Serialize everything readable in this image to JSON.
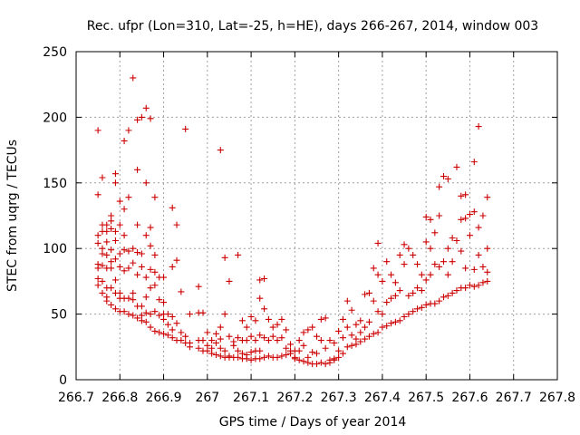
{
  "chart_data": {
    "type": "scatter",
    "title": "Rec. ufpr (Lon=310, Lat=-25, h=HE), days 266-267, 2014, window 003",
    "xlabel": "GPS time / Days of year 2014",
    "ylabel": "STEC from uqrg / TECUs",
    "xlim": [
      266.7,
      267.8
    ],
    "ylim": [
      0,
      250
    ],
    "xticks": [
      "266.7",
      "266.8",
      "266.9",
      "267",
      "267.1",
      "267.2",
      "267.3",
      "267.4",
      "267.5",
      "267.6",
      "267.7",
      "267.8"
    ],
    "yticks": [
      "0",
      "50",
      "100",
      "150",
      "200",
      "250"
    ],
    "grid": true,
    "marker": "+",
    "color": "#cc0000",
    "points": [
      [
        266.75,
        190
      ],
      [
        266.75,
        141
      ],
      [
        266.75,
        110
      ],
      [
        266.75,
        104
      ],
      [
        266.75,
        88
      ],
      [
        266.75,
        85
      ],
      [
        266.75,
        77
      ],
      [
        266.75,
        72
      ],
      [
        266.76,
        154
      ],
      [
        266.76,
        118
      ],
      [
        266.76,
        113
      ],
      [
        266.76,
        100
      ],
      [
        266.76,
        96
      ],
      [
        266.76,
        87
      ],
      [
        266.76,
        75
      ],
      [
        266.76,
        66
      ],
      [
        266.77,
        118
      ],
      [
        266.77,
        113
      ],
      [
        266.77,
        105
      ],
      [
        266.77,
        95
      ],
      [
        266.77,
        85
      ],
      [
        266.77,
        70
      ],
      [
        266.77,
        63
      ],
      [
        266.77,
        60
      ],
      [
        266.78,
        125
      ],
      [
        266.78,
        121
      ],
      [
        266.78,
        115
      ],
      [
        266.78,
        99
      ],
      [
        266.78,
        90
      ],
      [
        266.78,
        85
      ],
      [
        266.78,
        70
      ],
      [
        266.78,
        57
      ],
      [
        266.79,
        157
      ],
      [
        266.79,
        150
      ],
      [
        266.79,
        113
      ],
      [
        266.79,
        106
      ],
      [
        266.79,
        92
      ],
      [
        266.79,
        76
      ],
      [
        266.79,
        66
      ],
      [
        266.79,
        54
      ],
      [
        266.8,
        136
      ],
      [
        266.8,
        118
      ],
      [
        266.8,
        96
      ],
      [
        266.8,
        86
      ],
      [
        266.8,
        66
      ],
      [
        266.8,
        62
      ],
      [
        266.8,
        52
      ],
      [
        266.81,
        182
      ],
      [
        266.81,
        130
      ],
      [
        266.81,
        110
      ],
      [
        266.81,
        99
      ],
      [
        266.81,
        83
      ],
      [
        266.81,
        62
      ],
      [
        266.81,
        52
      ],
      [
        266.82,
        190
      ],
      [
        266.82,
        139
      ],
      [
        266.82,
        98
      ],
      [
        266.82,
        85
      ],
      [
        266.82,
        62
      ],
      [
        266.82,
        50
      ],
      [
        266.83,
        230
      ],
      [
        266.83,
        100
      ],
      [
        266.83,
        89
      ],
      [
        266.83,
        66
      ],
      [
        266.83,
        61
      ],
      [
        266.83,
        49
      ],
      [
        266.84,
        198
      ],
      [
        266.84,
        160
      ],
      [
        266.84,
        118
      ],
      [
        266.84,
        97
      ],
      [
        266.84,
        80
      ],
      [
        266.84,
        56
      ],
      [
        266.84,
        47
      ],
      [
        266.85,
        200
      ],
      [
        266.85,
        96
      ],
      [
        266.85,
        86
      ],
      [
        266.85,
        56
      ],
      [
        266.85,
        49
      ],
      [
        266.85,
        45
      ],
      [
        266.86,
        207
      ],
      [
        266.86,
        150
      ],
      [
        266.86,
        110
      ],
      [
        266.86,
        78
      ],
      [
        266.86,
        63
      ],
      [
        266.86,
        51
      ],
      [
        266.86,
        44
      ],
      [
        266.87,
        199
      ],
      [
        266.87,
        116
      ],
      [
        266.87,
        102
      ],
      [
        266.87,
        84
      ],
      [
        266.87,
        70
      ],
      [
        266.87,
        50
      ],
      [
        266.87,
        40
      ],
      [
        266.88,
        139
      ],
      [
        266.88,
        95
      ],
      [
        266.88,
        82
      ],
      [
        266.88,
        72
      ],
      [
        266.88,
        52
      ],
      [
        266.88,
        37
      ],
      [
        266.89,
        78
      ],
      [
        266.89,
        61
      ],
      [
        266.89,
        49
      ],
      [
        266.89,
        36
      ],
      [
        266.9,
        78
      ],
      [
        266.9,
        59
      ],
      [
        266.9,
        50
      ],
      [
        266.9,
        46
      ],
      [
        266.9,
        35
      ],
      [
        266.91,
        50
      ],
      [
        266.91,
        42
      ],
      [
        266.91,
        34
      ],
      [
        266.92,
        131
      ],
      [
        266.92,
        86
      ],
      [
        266.92,
        48
      ],
      [
        266.92,
        38
      ],
      [
        266.92,
        32
      ],
      [
        266.93,
        118
      ],
      [
        266.93,
        91
      ],
      [
        266.93,
        43
      ],
      [
        266.93,
        30
      ],
      [
        266.94,
        67
      ],
      [
        266.94,
        36
      ],
      [
        266.94,
        30
      ],
      [
        266.95,
        191
      ],
      [
        266.95,
        33
      ],
      [
        266.95,
        28
      ],
      [
        266.96,
        50
      ],
      [
        266.96,
        28
      ],
      [
        266.96,
        25
      ],
      [
        266.98,
        71
      ],
      [
        266.98,
        51
      ],
      [
        266.98,
        30
      ],
      [
        266.98,
        24
      ],
      [
        266.99,
        51
      ],
      [
        266.99,
        30
      ],
      [
        266.99,
        22
      ],
      [
        267.0,
        36
      ],
      [
        267.0,
        26
      ],
      [
        267.0,
        22
      ],
      [
        267.01,
        30
      ],
      [
        267.01,
        24
      ],
      [
        267.01,
        20
      ],
      [
        267.02,
        35
      ],
      [
        267.02,
        28
      ],
      [
        267.02,
        19
      ],
      [
        267.03,
        175
      ],
      [
        267.03,
        40
      ],
      [
        267.03,
        31
      ],
      [
        267.03,
        24
      ],
      [
        267.03,
        18
      ],
      [
        267.04,
        93
      ],
      [
        267.04,
        50
      ],
      [
        267.04,
        22
      ],
      [
        267.04,
        17
      ],
      [
        267.05,
        75
      ],
      [
        267.05,
        33
      ],
      [
        267.05,
        18
      ],
      [
        267.05,
        17
      ],
      [
        267.06,
        29
      ],
      [
        267.06,
        26
      ],
      [
        267.06,
        17
      ],
      [
        267.07,
        95
      ],
      [
        267.07,
        32
      ],
      [
        267.07,
        22
      ],
      [
        267.07,
        17
      ],
      [
        267.08,
        45
      ],
      [
        267.08,
        30
      ],
      [
        267.08,
        20
      ],
      [
        267.08,
        16
      ],
      [
        267.09,
        40
      ],
      [
        267.09,
        30
      ],
      [
        267.09,
        19
      ],
      [
        267.09,
        16
      ],
      [
        267.1,
        48
      ],
      [
        267.1,
        33
      ],
      [
        267.1,
        21
      ],
      [
        267.1,
        15
      ],
      [
        267.11,
        45
      ],
      [
        267.11,
        30
      ],
      [
        267.11,
        22
      ],
      [
        267.11,
        16
      ],
      [
        267.12,
        76
      ],
      [
        267.12,
        62
      ],
      [
        267.12,
        34
      ],
      [
        267.12,
        22
      ],
      [
        267.12,
        16
      ],
      [
        267.13,
        77
      ],
      [
        267.13,
        54
      ],
      [
        267.13,
        32
      ],
      [
        267.13,
        17
      ],
      [
        267.14,
        46
      ],
      [
        267.14,
        30
      ],
      [
        267.14,
        18
      ],
      [
        267.15,
        40
      ],
      [
        267.15,
        33
      ],
      [
        267.15,
        17
      ],
      [
        267.16,
        42
      ],
      [
        267.16,
        30
      ],
      [
        267.16,
        17
      ],
      [
        267.17,
        46
      ],
      [
        267.17,
        32
      ],
      [
        267.17,
        18
      ],
      [
        267.18,
        38
      ],
      [
        267.18,
        24
      ],
      [
        267.18,
        19
      ],
      [
        267.19,
        27
      ],
      [
        267.19,
        22
      ],
      [
        267.19,
        20
      ],
      [
        267.2,
        22
      ],
      [
        267.2,
        17
      ],
      [
        267.2,
        16
      ],
      [
        267.21,
        30
      ],
      [
        267.21,
        22
      ],
      [
        267.21,
        15
      ],
      [
        267.22,
        36
      ],
      [
        267.22,
        26
      ],
      [
        267.22,
        14
      ],
      [
        267.23,
        38
      ],
      [
        267.23,
        17
      ],
      [
        267.23,
        13
      ],
      [
        267.24,
        40
      ],
      [
        267.24,
        21
      ],
      [
        267.24,
        12
      ],
      [
        267.25,
        33
      ],
      [
        267.25,
        20
      ],
      [
        267.25,
        12
      ],
      [
        267.26,
        46
      ],
      [
        267.26,
        30
      ],
      [
        267.26,
        13
      ],
      [
        267.27,
        47
      ],
      [
        267.27,
        24
      ],
      [
        267.27,
        12
      ],
      [
        267.28,
        30
      ],
      [
        267.28,
        15
      ],
      [
        267.28,
        13
      ],
      [
        267.29,
        28
      ],
      [
        267.29,
        16
      ],
      [
        267.29,
        15
      ],
      [
        267.3,
        37
      ],
      [
        267.3,
        22
      ],
      [
        267.3,
        17
      ],
      [
        267.31,
        46
      ],
      [
        267.31,
        32
      ],
      [
        267.31,
        20
      ],
      [
        267.32,
        60
      ],
      [
        267.32,
        40
      ],
      [
        267.32,
        25
      ],
      [
        267.33,
        53
      ],
      [
        267.33,
        34
      ],
      [
        267.33,
        26
      ],
      [
        267.34,
        42
      ],
      [
        267.34,
        31
      ],
      [
        267.34,
        27
      ],
      [
        267.35,
        45
      ],
      [
        267.35,
        36
      ],
      [
        267.35,
        29
      ],
      [
        267.36,
        65
      ],
      [
        267.36,
        40
      ],
      [
        267.36,
        31
      ],
      [
        267.37,
        66
      ],
      [
        267.37,
        44
      ],
      [
        267.37,
        33
      ],
      [
        267.38,
        85
      ],
      [
        267.38,
        60
      ],
      [
        267.38,
        35
      ],
      [
        267.39,
        104
      ],
      [
        267.39,
        80
      ],
      [
        267.39,
        52
      ],
      [
        267.39,
        36
      ],
      [
        267.4,
        75
      ],
      [
        267.4,
        50
      ],
      [
        267.4,
        40
      ],
      [
        267.41,
        90
      ],
      [
        267.41,
        59
      ],
      [
        267.41,
        41
      ],
      [
        267.42,
        80
      ],
      [
        267.42,
        62
      ],
      [
        267.42,
        43
      ],
      [
        267.43,
        74
      ],
      [
        267.43,
        64
      ],
      [
        267.43,
        44
      ],
      [
        267.44,
        95
      ],
      [
        267.44,
        68
      ],
      [
        267.44,
        45
      ],
      [
        267.45,
        103
      ],
      [
        267.45,
        88
      ],
      [
        267.45,
        48
      ],
      [
        267.46,
        100
      ],
      [
        267.46,
        64
      ],
      [
        267.46,
        50
      ],
      [
        267.47,
        95
      ],
      [
        267.47,
        66
      ],
      [
        267.47,
        52
      ],
      [
        267.48,
        88
      ],
      [
        267.48,
        70
      ],
      [
        267.48,
        54
      ],
      [
        267.49,
        80
      ],
      [
        267.49,
        68
      ],
      [
        267.49,
        55
      ],
      [
        267.5,
        124
      ],
      [
        267.5,
        105
      ],
      [
        267.5,
        76
      ],
      [
        267.5,
        57
      ],
      [
        267.51,
        122
      ],
      [
        267.51,
        100
      ],
      [
        267.51,
        80
      ],
      [
        267.51,
        58
      ],
      [
        267.52,
        112
      ],
      [
        267.52,
        88
      ],
      [
        267.52,
        58
      ],
      [
        267.53,
        147
      ],
      [
        267.53,
        125
      ],
      [
        267.53,
        86
      ],
      [
        267.53,
        60
      ],
      [
        267.54,
        155
      ],
      [
        267.54,
        90
      ],
      [
        267.54,
        63
      ],
      [
        267.55,
        153
      ],
      [
        267.55,
        100
      ],
      [
        267.55,
        80
      ],
      [
        267.55,
        64
      ],
      [
        267.56,
        108
      ],
      [
        267.56,
        90
      ],
      [
        267.56,
        66
      ],
      [
        267.57,
        162
      ],
      [
        267.57,
        106
      ],
      [
        267.57,
        68
      ],
      [
        267.58,
        140
      ],
      [
        267.58,
        122
      ],
      [
        267.58,
        98
      ],
      [
        267.58,
        70
      ],
      [
        267.59,
        141
      ],
      [
        267.59,
        123
      ],
      [
        267.59,
        85
      ],
      [
        267.59,
        70
      ],
      [
        267.6,
        126
      ],
      [
        267.6,
        110
      ],
      [
        267.6,
        72
      ],
      [
        267.61,
        166
      ],
      [
        267.61,
        128
      ],
      [
        267.61,
        84
      ],
      [
        267.61,
        71
      ],
      [
        267.62,
        193
      ],
      [
        267.62,
        116
      ],
      [
        267.62,
        95
      ],
      [
        267.62,
        72
      ],
      [
        267.63,
        125
      ],
      [
        267.63,
        86
      ],
      [
        267.63,
        74
      ],
      [
        267.64,
        139
      ],
      [
        267.64,
        100
      ],
      [
        267.64,
        82
      ],
      [
        267.64,
        75
      ]
    ]
  }
}
